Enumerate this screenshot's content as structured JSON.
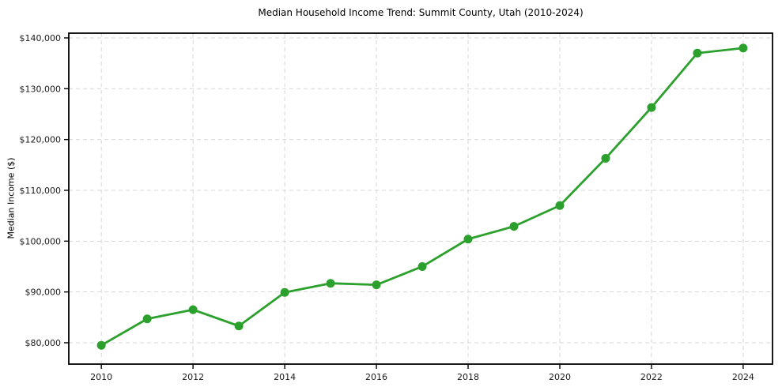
{
  "chart_data": {
    "type": "line",
    "title": "Median Household Income Trend: Summit County, Utah (2010-2024)",
    "xlabel": "",
    "ylabel": "Median Income ($)",
    "x": [
      2010,
      2011,
      2012,
      2013,
      2014,
      2015,
      2016,
      2017,
      2018,
      2019,
      2020,
      2021,
      2022,
      2023,
      2024
    ],
    "series": [
      {
        "name": "Median Household Income",
        "values": [
          79500,
          84700,
          86500,
          83300,
          89900,
          91700,
          91400,
          95000,
          100400,
          102900,
          107000,
          116300,
          126300,
          137000,
          138000
        ],
        "color": "#2ca02c",
        "marker": "circle"
      }
    ],
    "xticks": {
      "values": [
        2010,
        2012,
        2014,
        2016,
        2018,
        2020,
        2022,
        2024
      ],
      "labels": [
        "2010",
        "2012",
        "2014",
        "2016",
        "2018",
        "2020",
        "2022",
        "2024"
      ]
    },
    "yticks": {
      "values": [
        80000,
        90000,
        100000,
        110000,
        120000,
        130000,
        140000
      ],
      "labels": [
        "$80,000",
        "$90,000",
        "$100,000",
        "$110,000",
        "$120,000",
        "$130,000",
        "$140,000"
      ]
    },
    "xlim": [
      2009.29,
      2024.64
    ],
    "ylim": [
      75800,
      140930
    ],
    "grid": true,
    "grid_style": "dashed",
    "grid_color": "#d7d7d7",
    "spine_color": "#000000",
    "background": "#ffffff",
    "legend_position": "none"
  }
}
